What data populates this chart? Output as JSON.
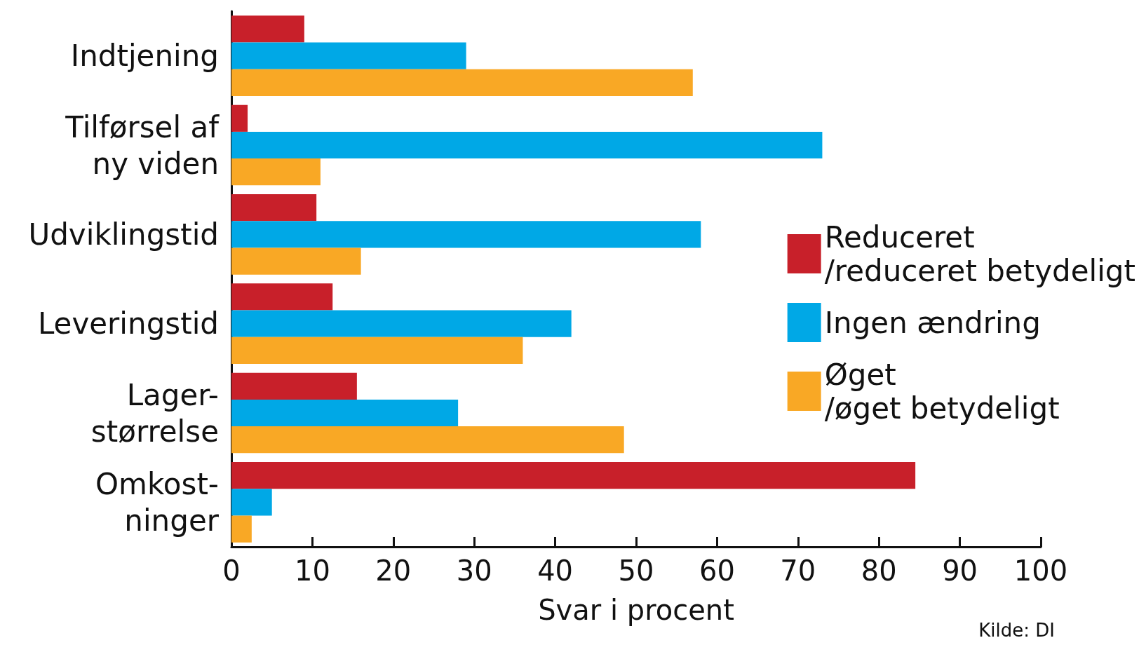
{
  "chart_data": {
    "type": "bar",
    "orientation": "horizontal",
    "xlabel": "Svar i procent",
    "categories": [
      "Indtjening",
      "Tilførsel af\nny viden",
      "Udviklingstid",
      "Leveringstid",
      "Lager-\nstørrelse",
      "Omkost-\nninger"
    ],
    "series": [
      {
        "name": "Reduceret\n/reduceret betydeligt",
        "color": "#c8202a",
        "values": [
          9,
          2,
          10.5,
          12.5,
          15.5,
          84.5
        ]
      },
      {
        "name": "Ingen ændring",
        "color": "#00a8e6",
        "values": [
          29,
          73,
          58,
          42,
          28,
          5
        ]
      },
      {
        "name": "Øget\n/øget betydeligt",
        "color": "#f9a825",
        "values": [
          57,
          11,
          16,
          36,
          48.5,
          2.5
        ]
      }
    ],
    "xlim": [
      0,
      100
    ],
    "xticks": [
      0,
      10,
      20,
      30,
      40,
      50,
      60,
      70,
      80,
      90,
      100
    ],
    "grid": false,
    "legend": "right",
    "annotations": [
      "Kilde: DI"
    ]
  }
}
